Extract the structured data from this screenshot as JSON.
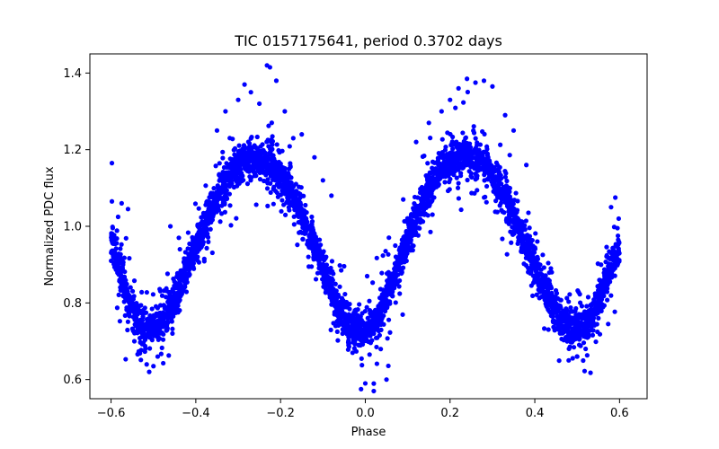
{
  "chart_data": {
    "type": "scatter",
    "title": "TIC 0157175641, period 0.3702 days",
    "xlabel": "Phase",
    "ylabel": "Normalized PDC flux",
    "xlim": [
      -0.65,
      0.665
    ],
    "ylim": [
      0.55,
      1.45
    ],
    "xticks": [
      -0.6,
      -0.4,
      -0.2,
      0.0,
      0.2,
      0.4,
      0.6
    ],
    "xtick_labels": [
      "−0.6",
      "−0.4",
      "−0.2",
      "0.0",
      "0.2",
      "0.4",
      "0.6"
    ],
    "yticks": [
      0.6,
      0.8,
      1.0,
      1.2,
      1.4
    ],
    "ytick_labels": [
      "0.6",
      "0.8",
      "1.0",
      "1.2",
      "1.4"
    ],
    "grid": false,
    "marker_color": "#0000ff",
    "series": [
      {
        "x": [
          -0.6,
          -0.58,
          -0.56,
          -0.54,
          -0.52,
          -0.5,
          -0.48,
          -0.46,
          -0.44,
          -0.42,
          -0.4,
          -0.38,
          -0.36,
          -0.34,
          -0.32,
          -0.3,
          -0.28,
          -0.26,
          -0.24,
          -0.22,
          -0.2,
          -0.18,
          -0.16,
          -0.14,
          -0.12,
          -0.1,
          -0.08,
          -0.06,
          -0.04,
          -0.02,
          0.0,
          0.02,
          0.04,
          0.06,
          0.08,
          0.1,
          0.12,
          0.14,
          0.16,
          0.18,
          0.2,
          0.22,
          0.24,
          0.26,
          0.28,
          0.3,
          0.32,
          0.34,
          0.36,
          0.38,
          0.4,
          0.42,
          0.44,
          0.46,
          0.48,
          0.5,
          0.52,
          0.54,
          0.56,
          0.58,
          0.6
        ],
        "y": [
          0.965,
          0.885,
          0.815,
          0.765,
          0.74,
          0.735,
          0.745,
          0.785,
          0.84,
          0.895,
          0.95,
          1.005,
          1.055,
          1.095,
          1.13,
          1.155,
          1.17,
          1.175,
          1.17,
          1.16,
          1.135,
          1.095,
          1.055,
          1.0,
          0.95,
          0.895,
          0.835,
          0.78,
          0.745,
          0.73,
          0.725,
          0.74,
          0.78,
          0.84,
          0.9,
          0.96,
          1.03,
          1.08,
          1.125,
          1.155,
          1.17,
          1.18,
          1.185,
          1.175,
          1.16,
          1.13,
          1.095,
          1.055,
          1.0,
          0.95,
          0.895,
          0.84,
          0.79,
          0.755,
          0.74,
          0.735,
          0.745,
          0.78,
          0.835,
          0.89,
          0.95
        ]
      }
    ],
    "outliers": {
      "x": [
        -0.598,
        -0.598,
        -0.575,
        -0.56,
        -0.545,
        -0.51,
        -0.5,
        -0.49,
        -0.46,
        -0.44,
        -0.4,
        -0.35,
        -0.33,
        -0.3,
        -0.285,
        -0.27,
        -0.25,
        -0.232,
        -0.225,
        -0.21,
        -0.19,
        -0.17,
        -0.15,
        -0.12,
        -0.1,
        -0.08,
        -0.03,
        -0.01,
        0.0,
        0.02,
        0.05,
        0.1,
        0.12,
        0.15,
        0.18,
        0.2,
        0.22,
        0.24,
        0.26,
        0.28,
        0.3,
        0.33,
        0.35,
        0.38,
        0.44,
        0.48,
        0.5,
        0.52,
        0.55,
        0.58,
        0.59,
        0.598
      ],
      "y": [
        1.165,
        1.065,
        1.06,
        1.045,
        0.7,
        0.62,
        0.635,
        0.66,
        1.0,
        0.97,
        0.96,
        1.25,
        1.3,
        1.33,
        1.37,
        1.35,
        1.32,
        1.42,
        1.415,
        1.38,
        1.3,
        1.23,
        1.24,
        1.18,
        1.12,
        1.08,
        0.67,
        0.575,
        0.59,
        0.57,
        0.6,
        0.95,
        1.22,
        1.27,
        1.3,
        1.33,
        1.36,
        1.385,
        1.375,
        1.38,
        1.365,
        1.29,
        1.25,
        1.16,
        0.88,
        0.65,
        0.66,
        0.68,
        0.76,
        1.05,
        1.075,
        1.02
      ]
    }
  }
}
